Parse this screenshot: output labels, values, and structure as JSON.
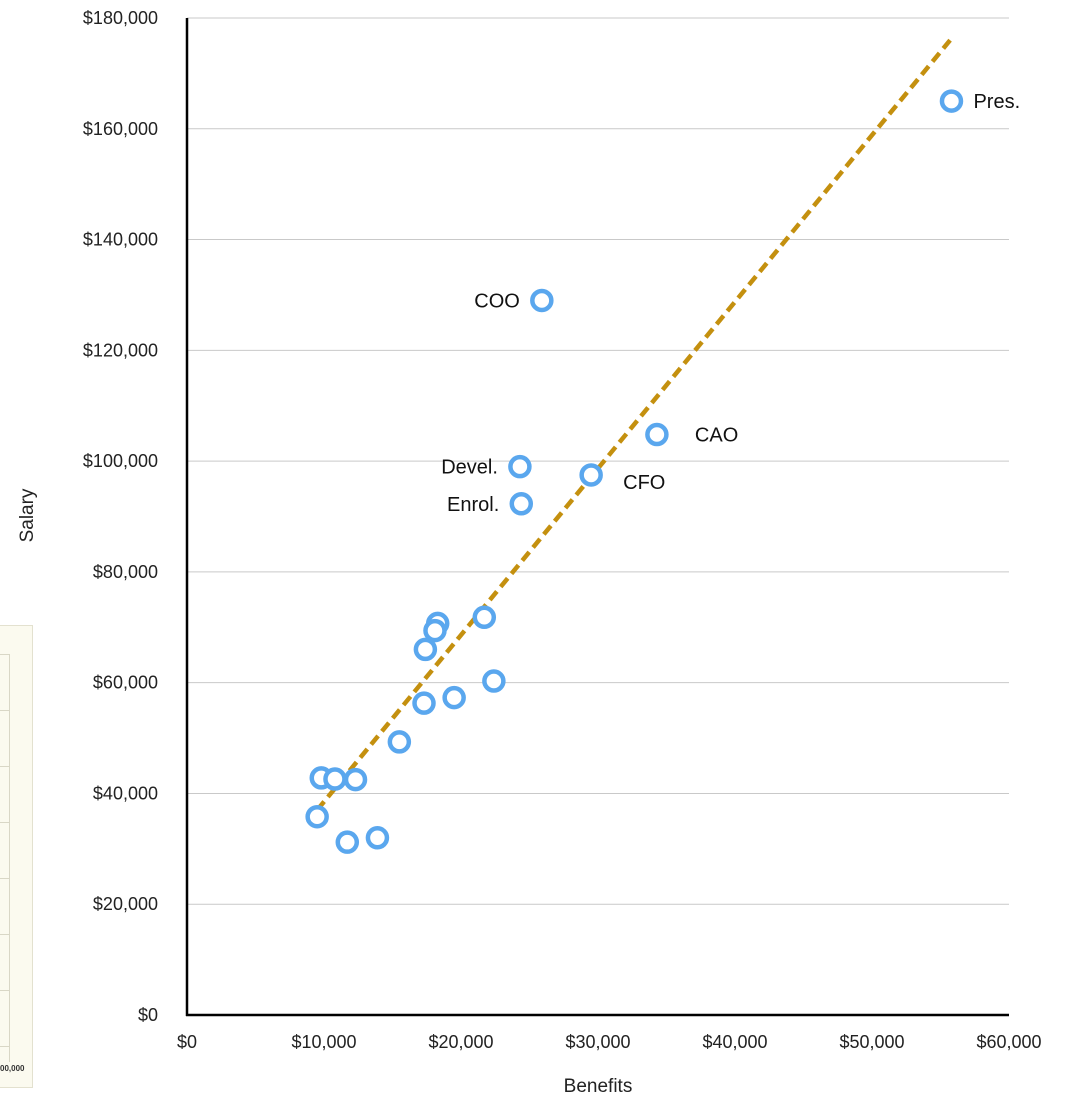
{
  "chart_data": {
    "type": "scatter",
    "xlabel": "Benefits",
    "ylabel": "Salary",
    "xlim": [
      0,
      60000
    ],
    "ylim": [
      0,
      180000
    ],
    "x_ticks": [
      "$0",
      "$10,000",
      "$20,000",
      "$30,000",
      "$40,000",
      "$50,000",
      "$60,000"
    ],
    "y_ticks": [
      "$0",
      "$20,000",
      "$40,000",
      "$60,000",
      "$80,000",
      "$100,000",
      "$120,000",
      "$140,000",
      "$160,000",
      "$180,000"
    ],
    "grid": "horizontal",
    "marker_color": "#5aa7ee",
    "trendline": {
      "style": "dashed",
      "color": "#c4900f",
      "from": [
        9500,
        37000
      ],
      "to": [
        55700,
        176000
      ]
    },
    "points": [
      {
        "x": 55800,
        "y": 165000,
        "label": "Pres."
      },
      {
        "x": 25900,
        "y": 129000,
        "label": "COO"
      },
      {
        "x": 34300,
        "y": 104800,
        "label": "CAO"
      },
      {
        "x": 29500,
        "y": 97500,
        "label": "CFO"
      },
      {
        "x": 24300,
        "y": 99000,
        "label": "Devel."
      },
      {
        "x": 24400,
        "y": 92300,
        "label": "Enrol."
      },
      {
        "x": 21700,
        "y": 71800,
        "label": ""
      },
      {
        "x": 18300,
        "y": 70700,
        "label": ""
      },
      {
        "x": 18100,
        "y": 69400,
        "label": ""
      },
      {
        "x": 17400,
        "y": 66000,
        "label": ""
      },
      {
        "x": 22400,
        "y": 60300,
        "label": ""
      },
      {
        "x": 19500,
        "y": 57300,
        "label": ""
      },
      {
        "x": 17300,
        "y": 56300,
        "label": ""
      },
      {
        "x": 15500,
        "y": 49300,
        "label": ""
      },
      {
        "x": 9800,
        "y": 42800,
        "label": ""
      },
      {
        "x": 10800,
        "y": 42600,
        "label": ""
      },
      {
        "x": 12300,
        "y": 42500,
        "label": ""
      },
      {
        "x": 9500,
        "y": 35800,
        "label": ""
      },
      {
        "x": 11700,
        "y": 31200,
        "label": ""
      },
      {
        "x": 13900,
        "y": 32000,
        "label": ""
      }
    ]
  },
  "ghost_chart": {
    "tick_label": "00,000"
  }
}
